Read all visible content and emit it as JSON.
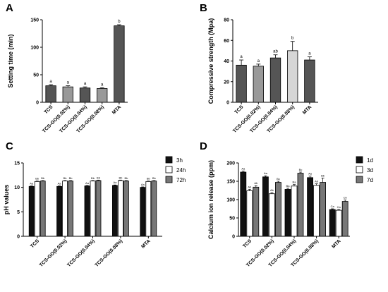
{
  "colors": {
    "dark": "#555555",
    "mid": "#999999",
    "light": "#d6d6d6",
    "black": "#111111",
    "white": "#ffffff",
    "grey": "#777777"
  },
  "chart_data": [
    {
      "panel": "A",
      "type": "bar",
      "ylabel": "Setting time (min)",
      "ylim": [
        0,
        150
      ],
      "yticks": [
        0,
        50,
        100,
        150
      ],
      "categories": [
        "TCS",
        "TCS-GO(0.02%)",
        "TCS-GO(0.04%)",
        "TCS-GO(0.08%)",
        "MTA"
      ],
      "series": [
        {
          "values": [
            30,
            28,
            26,
            25,
            139
          ],
          "errors": [
            2,
            2,
            2,
            1.5,
            2
          ],
          "colors": [
            "#555555",
            "#999999",
            "#555555",
            "#999999",
            "#555555"
          ],
          "labels": [
            "a",
            "a",
            "a",
            "a",
            "b"
          ]
        }
      ]
    },
    {
      "panel": "B",
      "type": "bar",
      "ylabel": "Compressive strength (Mpa)",
      "ylim": [
        0,
        80
      ],
      "yticks": [
        0,
        20,
        40,
        60,
        80
      ],
      "categories": [
        "TCS",
        "TCS-GO(0.02%)",
        "TCS-GO(0.04%)",
        "TCS-GO(0.08%)",
        "MTA"
      ],
      "series": [
        {
          "values": [
            36,
            35,
            43,
            50,
            41
          ],
          "errors": [
            5,
            2,
            3,
            9,
            3
          ],
          "colors": [
            "#555555",
            "#999999",
            "#555555",
            "#d6d6d6",
            "#555555"
          ],
          "labels": [
            "a",
            "a",
            "ab",
            "b",
            "a"
          ]
        }
      ]
    },
    {
      "panel": "C",
      "type": "bar",
      "ylabel": "pH values",
      "ylim": [
        0,
        15
      ],
      "yticks": [
        0,
        5,
        10,
        15
      ],
      "legend": "right",
      "categories": [
        "TCS",
        "TCS-GO(0.02%)",
        "TCS-GO(0.04%)",
        "TCS-GO(0.08%)",
        "MTA"
      ],
      "series": [
        {
          "name": "3h",
          "values": [
            10.2,
            10.2,
            10.3,
            10.4,
            10.0
          ],
          "errors": [
            0.1,
            0.1,
            0.1,
            0.1,
            0.1
          ],
          "labels": [
            "Aa",
            "Aa",
            "Aa",
            "Aa",
            "Aa"
          ]
        },
        {
          "name": "24h",
          "values": [
            11.2,
            11.3,
            11.3,
            11.4,
            11.2
          ],
          "errors": [
            0.1,
            0.1,
            0.1,
            0.1,
            0.1
          ],
          "labels": [
            "Bb",
            "Bb",
            "Bb",
            "Bb",
            "Bb"
          ]
        },
        {
          "name": "72h",
          "values": [
            11.3,
            11.3,
            11.4,
            11.3,
            11.3
          ],
          "errors": [
            0.1,
            0.1,
            0.1,
            0.1,
            0.1
          ],
          "labels": [
            "Bb",
            "Bb",
            "Bb",
            "Bb",
            "Bb"
          ]
        }
      ]
    },
    {
      "panel": "D",
      "type": "bar",
      "ylabel": "Calcium ion release (ppm)",
      "ylim": [
        0,
        200
      ],
      "yticks": [
        0,
        50,
        100,
        150,
        200
      ],
      "legend": "right",
      "categories": [
        "TCS",
        "TCS-GO(0.02%)",
        "TCS-GO(0.04%)",
        "TCS-GO(0.08%)",
        "MTA"
      ],
      "series": [
        {
          "name": "1d",
          "values": [
            175,
            162,
            128,
            160,
            73
          ],
          "errors": [
            3,
            3,
            3,
            4,
            2
          ],
          "labels": [
            "Aa",
            "Aa",
            "Ba",
            "Aa",
            "Ca"
          ]
        },
        {
          "name": "3d",
          "values": [
            124,
            116,
            137,
            139,
            71
          ],
          "errors": [
            4,
            3,
            4,
            4,
            2
          ],
          "labels": [
            "Ab",
            "Ab",
            "Ba",
            "Ab",
            "Ca"
          ]
        },
        {
          "name": "7d",
          "values": [
            134,
            147,
            172,
            147,
            95
          ],
          "errors": [
            4,
            3,
            3,
            12,
            4
          ],
          "labels": [
            "Ab",
            "Bc",
            "Bc",
            "Bb",
            "Cb"
          ]
        }
      ]
    }
  ]
}
